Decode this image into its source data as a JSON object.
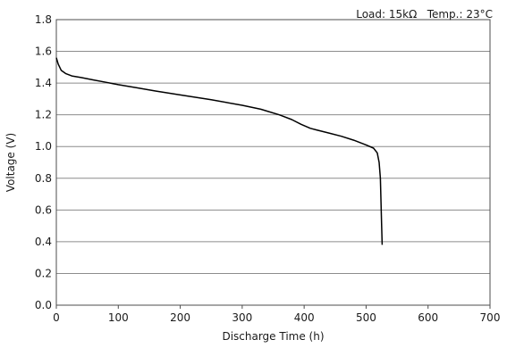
{
  "chart_data": {
    "type": "line",
    "title": "",
    "note": "Load: 15kΩ   Temp.: 23°C",
    "xlabel": "Discharge Time (h)",
    "ylabel": "Voltage (V)",
    "xlim": [
      0,
      700
    ],
    "ylim": [
      0.0,
      1.8
    ],
    "x_ticks": [
      "0",
      "100",
      "200",
      "300",
      "400",
      "500",
      "600",
      "700"
    ],
    "y_ticks": [
      "0.0",
      "0.2",
      "0.4",
      "0.6",
      "0.8",
      "1.0",
      "1.2",
      "1.4",
      "1.6",
      "1.8"
    ],
    "grid": "horizontal",
    "legend": "none",
    "series": [
      {
        "color": "#000000",
        "x": [
          0,
          3,
          8,
          15,
          25,
          40,
          60,
          80,
          100,
          130,
          160,
          200,
          250,
          300,
          330,
          360,
          380,
          395,
          410,
          420,
          440,
          460,
          480,
          500,
          512,
          518,
          521,
          523,
          524,
          525,
          526
        ],
        "y": [
          1.56,
          1.52,
          1.48,
          1.46,
          1.445,
          1.435,
          1.42,
          1.405,
          1.39,
          1.37,
          1.35,
          1.325,
          1.295,
          1.26,
          1.235,
          1.2,
          1.17,
          1.14,
          1.115,
          1.105,
          1.085,
          1.065,
          1.04,
          1.01,
          0.99,
          0.96,
          0.9,
          0.8,
          0.65,
          0.5,
          0.38
        ]
      }
    ]
  }
}
